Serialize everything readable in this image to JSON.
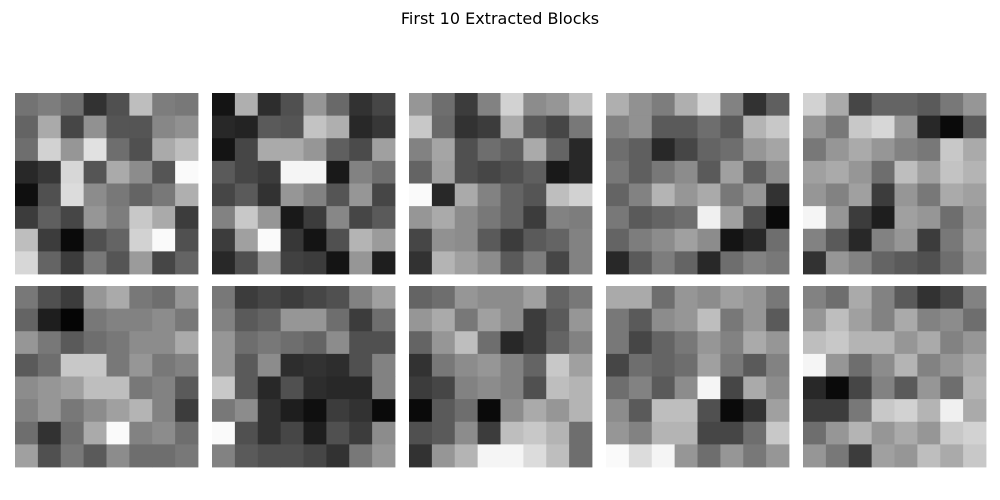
{
  "figure": {
    "title": "First 10 Extracted Blocks"
  },
  "chart_data": {
    "type": "heatmap",
    "title": "First 10 Extracted Blocks",
    "colormap": "gray",
    "value_range": [
      0,
      255
    ],
    "axes_visible": false,
    "grid_layout": {
      "rows": 2,
      "cols": 5
    },
    "blocks": [
      {
        "index": 1,
        "values": [
          [
            115,
            125,
            110,
            50,
            80,
            190,
            125,
            120
          ],
          [
            100,
            170,
            70,
            145,
            85,
            85,
            135,
            145
          ],
          [
            110,
            210,
            150,
            225,
            110,
            80,
            170,
            190
          ],
          [
            40,
            55,
            215,
            85,
            170,
            140,
            85,
            250
          ],
          [
            15,
            80,
            220,
            140,
            120,
            100,
            120,
            175
          ],
          [
            60,
            95,
            70,
            150,
            125,
            200,
            170,
            60
          ],
          [
            190,
            60,
            10,
            80,
            100,
            210,
            250,
            80
          ],
          [
            215,
            100,
            60,
            120,
            85,
            155,
            70,
            100
          ]
        ]
      },
      {
        "index": 2,
        "values": [
          [
            20,
            175,
            45,
            80,
            150,
            105,
            50,
            70
          ],
          [
            40,
            35,
            90,
            85,
            195,
            175,
            40,
            55
          ],
          [
            20,
            70,
            170,
            170,
            150,
            95,
            75,
            160
          ],
          [
            90,
            70,
            60,
            245,
            245,
            25,
            130,
            110
          ],
          [
            70,
            90,
            50,
            150,
            130,
            85,
            150,
            70
          ],
          [
            130,
            200,
            150,
            25,
            60,
            135,
            70,
            90
          ],
          [
            60,
            160,
            250,
            55,
            20,
            80,
            180,
            155
          ],
          [
            40,
            80,
            145,
            65,
            60,
            20,
            150,
            30
          ]
        ]
      },
      {
        "index": 3,
        "values": [
          [
            150,
            110,
            60,
            130,
            210,
            140,
            150,
            190
          ],
          [
            200,
            105,
            50,
            60,
            170,
            90,
            70,
            120
          ],
          [
            130,
            165,
            80,
            110,
            95,
            170,
            100,
            40
          ],
          [
            100,
            160,
            80,
            70,
            80,
            95,
            25,
            40
          ],
          [
            250,
            40,
            170,
            130,
            100,
            85,
            190,
            210
          ],
          [
            150,
            170,
            140,
            120,
            100,
            60,
            130,
            125
          ],
          [
            70,
            145,
            140,
            90,
            60,
            90,
            100,
            130
          ],
          [
            50,
            180,
            160,
            140,
            90,
            125,
            70,
            130
          ]
        ]
      },
      {
        "index": 4,
        "values": [
          [
            175,
            145,
            125,
            175,
            215,
            130,
            50,
            95
          ],
          [
            130,
            145,
            90,
            90,
            110,
            90,
            180,
            200
          ],
          [
            110,
            95,
            40,
            70,
            100,
            110,
            150,
            165
          ],
          [
            120,
            95,
            120,
            140,
            90,
            160,
            95,
            140
          ],
          [
            100,
            130,
            180,
            150,
            170,
            120,
            150,
            50
          ],
          [
            120,
            90,
            100,
            110,
            240,
            160,
            80,
            10
          ],
          [
            100,
            125,
            140,
            160,
            140,
            20,
            40,
            110
          ],
          [
            40,
            90,
            125,
            100,
            40,
            110,
            130,
            120
          ]
        ]
      },
      {
        "index": 5,
        "values": [
          [
            210,
            170,
            70,
            100,
            100,
            90,
            120,
            150
          ],
          [
            150,
            120,
            200,
            215,
            150,
            40,
            10,
            90
          ],
          [
            120,
            150,
            170,
            150,
            130,
            120,
            200,
            170
          ],
          [
            160,
            170,
            150,
            110,
            190,
            160,
            195,
            180
          ],
          [
            150,
            130,
            160,
            60,
            150,
            120,
            170,
            160
          ],
          [
            245,
            150,
            60,
            30,
            160,
            150,
            110,
            150
          ],
          [
            130,
            90,
            40,
            130,
            150,
            60,
            120,
            160
          ],
          [
            50,
            150,
            130,
            100,
            90,
            80,
            110,
            150
          ]
        ]
      },
      {
        "index": 6,
        "values": [
          [
            120,
            80,
            60,
            150,
            170,
            120,
            110,
            150
          ],
          [
            100,
            30,
            5,
            120,
            130,
            130,
            140,
            120
          ],
          [
            150,
            120,
            90,
            110,
            120,
            140,
            140,
            170
          ],
          [
            90,
            110,
            200,
            200,
            120,
            150,
            120,
            130
          ],
          [
            140,
            150,
            160,
            190,
            190,
            120,
            130,
            90
          ],
          [
            130,
            150,
            120,
            140,
            160,
            180,
            130,
            60
          ],
          [
            110,
            50,
            110,
            170,
            250,
            130,
            140,
            110
          ],
          [
            160,
            80,
            120,
            90,
            140,
            110,
            110,
            120
          ]
        ]
      },
      {
        "index": 7,
        "values": [
          [
            120,
            60,
            70,
            60,
            70,
            80,
            130,
            160
          ],
          [
            130,
            90,
            100,
            150,
            150,
            110,
            60,
            110
          ],
          [
            150,
            110,
            120,
            110,
            100,
            140,
            80,
            80
          ],
          [
            150,
            90,
            140,
            45,
            50,
            45,
            80,
            130
          ],
          [
            200,
            90,
            40,
            80,
            45,
            40,
            40,
            130
          ],
          [
            120,
            140,
            50,
            30,
            15,
            60,
            50,
            10
          ],
          [
            250,
            80,
            50,
            70,
            30,
            80,
            60,
            140
          ],
          [
            130,
            90,
            80,
            80,
            70,
            50,
            120,
            150
          ]
        ]
      },
      {
        "index": 8,
        "values": [
          [
            100,
            110,
            150,
            140,
            140,
            160,
            100,
            120
          ],
          [
            150,
            170,
            120,
            160,
            140,
            60,
            90,
            150
          ],
          [
            100,
            150,
            190,
            110,
            40,
            60,
            100,
            130
          ],
          [
            50,
            120,
            140,
            150,
            130,
            100,
            200,
            160
          ],
          [
            60,
            70,
            130,
            140,
            130,
            80,
            190,
            180
          ],
          [
            10,
            90,
            110,
            10,
            140,
            170,
            150,
            180
          ],
          [
            80,
            90,
            140,
            60,
            190,
            200,
            180,
            110
          ],
          [
            50,
            150,
            180,
            245,
            245,
            220,
            190,
            110
          ]
        ]
      },
      {
        "index": 9,
        "values": [
          [
            170,
            170,
            110,
            150,
            140,
            160,
            150,
            120
          ],
          [
            120,
            90,
            140,
            150,
            190,
            120,
            150,
            90
          ],
          [
            120,
            70,
            100,
            120,
            150,
            130,
            170,
            150
          ],
          [
            70,
            110,
            100,
            110,
            160,
            120,
            90,
            130
          ],
          [
            110,
            130,
            90,
            140,
            245,
            70,
            170,
            140
          ],
          [
            140,
            90,
            190,
            190,
            80,
            10,
            50,
            160
          ],
          [
            150,
            130,
            180,
            180,
            70,
            70,
            110,
            200
          ],
          [
            250,
            220,
            245,
            150,
            110,
            150,
            120,
            150
          ]
        ]
      },
      {
        "index": 10,
        "values": [
          [
            130,
            110,
            170,
            130,
            90,
            50,
            70,
            130
          ],
          [
            150,
            190,
            160,
            130,
            170,
            130,
            140,
            110
          ],
          [
            190,
            200,
            180,
            180,
            150,
            170,
            130,
            150
          ],
          [
            245,
            150,
            110,
            140,
            180,
            130,
            150,
            170
          ],
          [
            40,
            10,
            70,
            130,
            90,
            150,
            110,
            180
          ],
          [
            60,
            60,
            120,
            200,
            210,
            180,
            240,
            170
          ],
          [
            110,
            150,
            180,
            150,
            170,
            150,
            200,
            210
          ],
          [
            150,
            120,
            60,
            160,
            150,
            190,
            170,
            200
          ]
        ]
      }
    ]
  }
}
